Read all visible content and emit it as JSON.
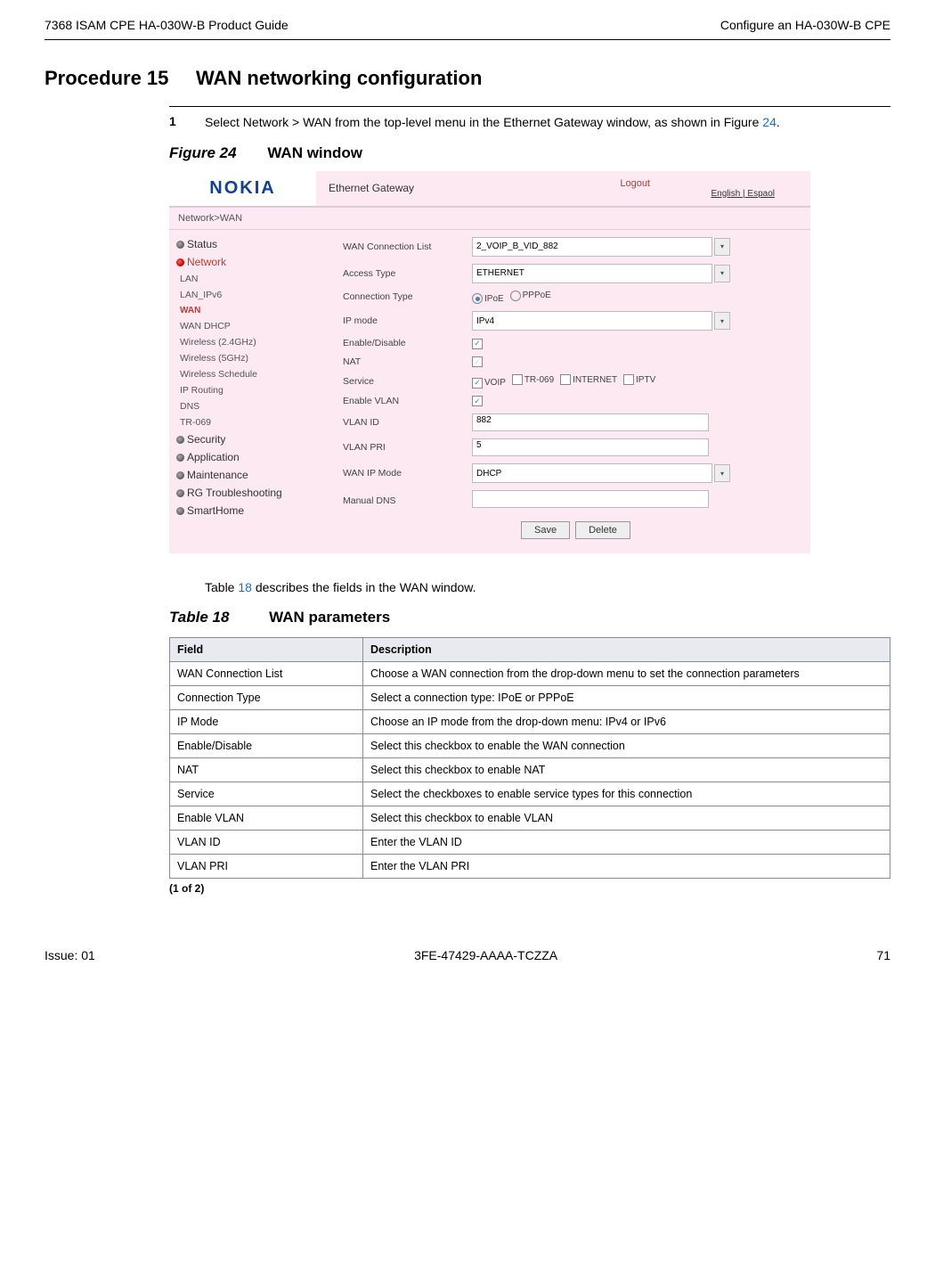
{
  "header": {
    "left": "7368 ISAM CPE HA-030W-B Product Guide",
    "right": "Configure an HA-030W-B CPE"
  },
  "procedure": {
    "number": "Procedure 15",
    "title": "WAN networking configuration"
  },
  "step": {
    "num": "1",
    "text_before": "Select Network > WAN from the top-level menu in the Ethernet Gateway window, as shown in Figure ",
    "link": "24",
    "text_after": "."
  },
  "figure": {
    "label": "Figure 24",
    "name": "WAN window"
  },
  "screenshot": {
    "logo": "NOKIA",
    "gateway_title": "Ethernet Gateway",
    "logout": "Logout",
    "lang": "English | Espaol",
    "crumb": "Network>WAN",
    "sidebar": {
      "status": "Status",
      "network": "Network",
      "subs": {
        "lan": "LAN",
        "lan6": "LAN_IPv6",
        "wan": "WAN",
        "wandhcp": "WAN DHCP",
        "w24": "Wireless (2.4GHz)",
        "w5": "Wireless (5GHz)",
        "wsched": "Wireless Schedule",
        "iprouting": "IP Routing",
        "dns": "DNS",
        "tr069": "TR-069"
      },
      "security": "Security",
      "application": "Application",
      "maintenance": "Maintenance",
      "rg": "RG Troubleshooting",
      "smarthome": "SmartHome"
    },
    "form": {
      "wcl_label": "WAN Connection List",
      "wcl_value": "2_VOIP_B_VID_882",
      "access_label": "Access Type",
      "access_value": "ETHERNET",
      "conntype_label": "Connection Type",
      "conntype_ipoe": "IPoE",
      "conntype_pppoe": "PPPoE",
      "ipmode_label": "IP mode",
      "ipmode_value": "IPv4",
      "enable_label": "Enable/Disable",
      "nat_label": "NAT",
      "service_label": "Service",
      "svc_voip": "VOIP",
      "svc_tr069": "TR-069",
      "svc_internet": "INTERNET",
      "svc_iptv": "IPTV",
      "envlan_label": "Enable VLAN",
      "vlanid_label": "VLAN ID",
      "vlanid_value": "882",
      "vlanpri_label": "VLAN PRI",
      "vlanpri_value": "5",
      "wanip_label": "WAN IP Mode",
      "wanip_value": "DHCP",
      "mdns_label": "Manual DNS",
      "save": "Save",
      "delete": "Delete"
    }
  },
  "table_intro": {
    "before": "Table ",
    "link": "18",
    "after": " describes the fields in the WAN window."
  },
  "table": {
    "label": "Table 18",
    "name": "WAN parameters",
    "columns": {
      "field": "Field",
      "desc": "Description"
    },
    "rows": [
      {
        "f": "WAN Connection List",
        "d": "Choose a WAN connection from the drop-down menu to set the connection parameters"
      },
      {
        "f": "Connection Type",
        "d": "Select a connection type: IPoE or PPPoE"
      },
      {
        "f": "IP Mode",
        "d": "Choose an IP mode from the drop-down menu: IPv4 or IPv6"
      },
      {
        "f": "Enable/Disable",
        "d": "Select this checkbox to enable the WAN connection"
      },
      {
        "f": "NAT",
        "d": "Select this checkbox to enable NAT"
      },
      {
        "f": "Service",
        "d": "Select the checkboxes to enable service types for this connection"
      },
      {
        "f": "Enable VLAN",
        "d": "Select this checkbox to enable VLAN"
      },
      {
        "f": "VLAN ID",
        "d": "Enter the VLAN ID"
      },
      {
        "f": "VLAN PRI",
        "d": "Enter the VLAN PRI"
      }
    ],
    "footer": "(1 of 2)"
  },
  "footer": {
    "issue": "Issue: 01",
    "docnum": "3FE-47429-AAAA-TCZZA",
    "page": "71"
  }
}
